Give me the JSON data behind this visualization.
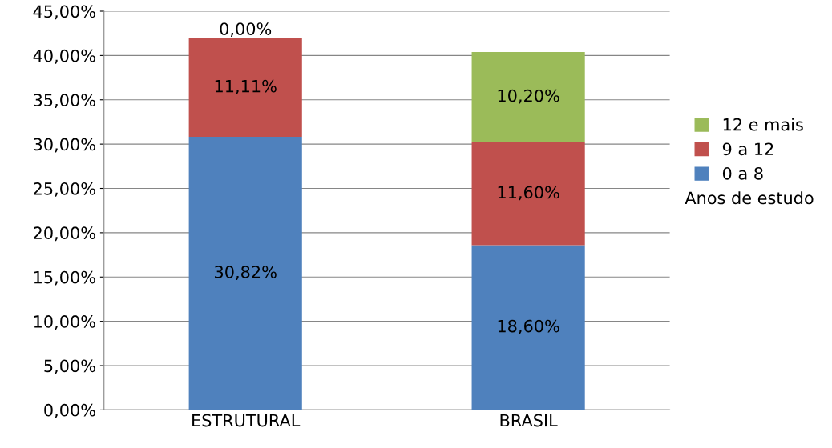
{
  "chart_data": {
    "type": "bar",
    "stacked": true,
    "categories": [
      "ESTRUTURAL",
      "BRASIL"
    ],
    "series": [
      {
        "name": "0 a 8",
        "color": "#4f81bd",
        "values": [
          30.82,
          18.6
        ],
        "value_labels": [
          "30,82%",
          "18,60%"
        ]
      },
      {
        "name": "9 a 12",
        "color": "#c0504d",
        "values": [
          11.11,
          11.6
        ],
        "value_labels": [
          "11,11%",
          "11,60%"
        ]
      },
      {
        "name": "12 e mais",
        "color": "#9bbb59",
        "values": [
          0.0,
          10.2
        ],
        "value_labels": [
          "0,00%",
          "10,20%"
        ]
      }
    ],
    "legend_title": "Anos de estudo",
    "legend": "right",
    "grid": "y",
    "ylim": [
      0,
      45
    ],
    "yticks": [
      {
        "value": 0,
        "label": "0,00%"
      },
      {
        "value": 5,
        "label": "5,00%"
      },
      {
        "value": 10,
        "label": "10,00%"
      },
      {
        "value": 15,
        "label": "15,00%"
      },
      {
        "value": 20,
        "label": "20,00%"
      },
      {
        "value": 25,
        "label": "25,00%"
      },
      {
        "value": 30,
        "label": "30,00%"
      },
      {
        "value": 35,
        "label": "35,00%"
      },
      {
        "value": 40,
        "label": "40,00%"
      },
      {
        "value": 45,
        "label": "45,00%"
      }
    ]
  }
}
